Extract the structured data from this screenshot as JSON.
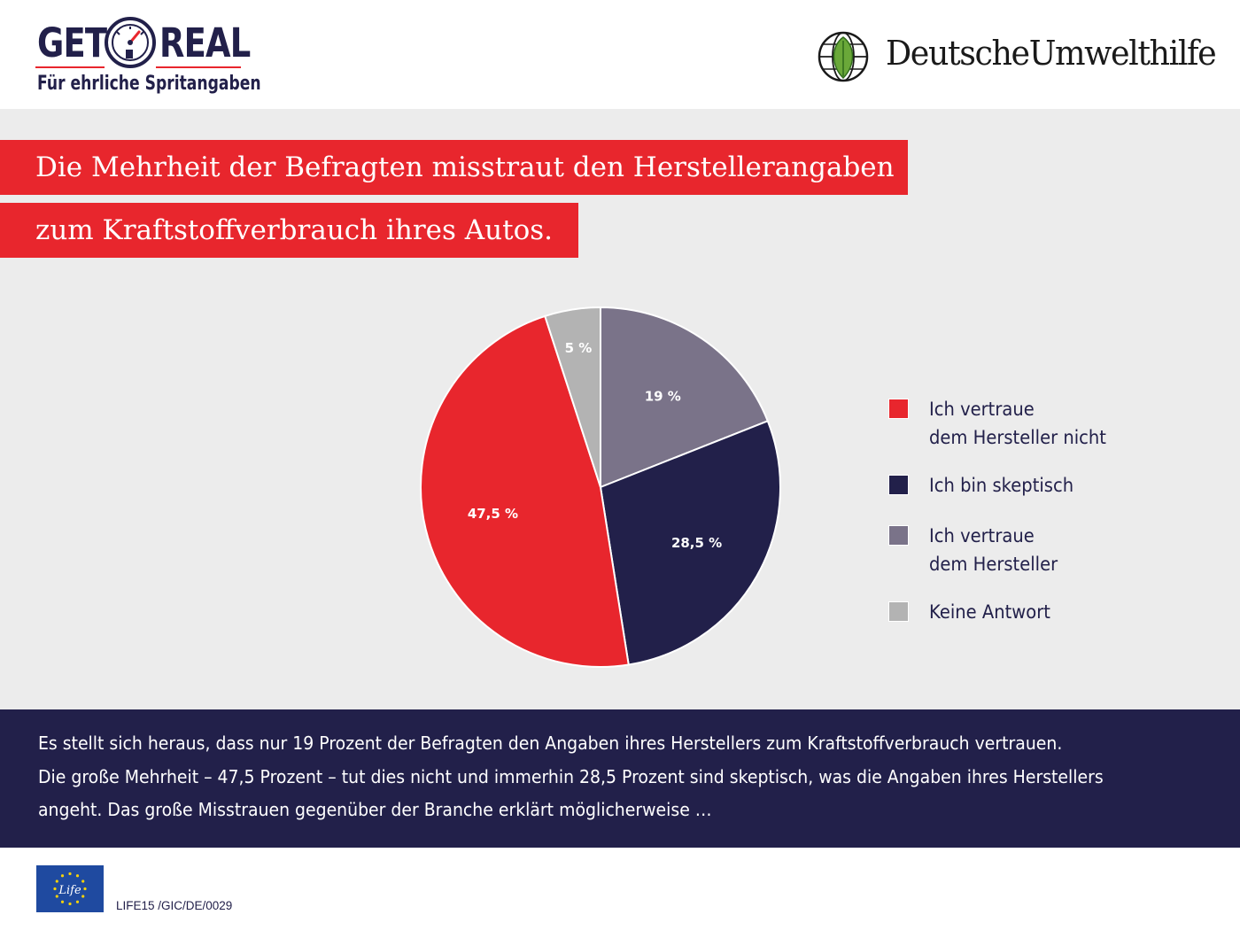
{
  "header": {
    "getreal": {
      "word_left": "GET",
      "word_right": "REAL",
      "tagline": "Für ehrliche Spritangaben"
    },
    "duh": {
      "name": "DeutscheUmwelthilfe"
    }
  },
  "title": {
    "line1": "Die Mehrheit der Befragten misstraut den Herstellerangaben",
    "line2": "zum Kraftstoffverbrauch ihres Autos."
  },
  "colors": {
    "red": "#e8262d",
    "navy": "#22204a",
    "purple_gray": "#7a7389",
    "light_gray": "#b3b3b3",
    "panel": "#ececec"
  },
  "chart_data": {
    "type": "pie",
    "start_angle_deg": 0,
    "direction": "clockwise",
    "slices": [
      {
        "label": "Ich vertraue\ndem Hersteller",
        "value": 19,
        "display": "19 %",
        "color": "#7a7389"
      },
      {
        "label": "Ich bin skeptisch",
        "value": 28.5,
        "display": "28,5 %",
        "color": "#22204a"
      },
      {
        "label": "Ich vertraue\ndem Hersteller nicht",
        "value": 47.5,
        "display": "47,5 %",
        "color": "#e8262d"
      },
      {
        "label": "Keine Antwort",
        "value": 5,
        "display": "5 %",
        "color": "#b3b3b3"
      }
    ],
    "legend_order": [
      2,
      1,
      0,
      3
    ],
    "legend_position": "right"
  },
  "footer": {
    "line1": "Es stellt sich heraus, dass nur 19 Prozent der Befragten den Angaben ihres Herstellers zum Kraftstoffverbrauch vertrauen.",
    "line2": "Die große Mehrheit – 47,5 Prozent – tut dies nicht und immerhin 28,5 Prozent sind skeptisch, was die Angaben ihres Herstellers",
    "line3": "angeht. Das große Misstrauen gegenüber der Branche erklärt möglicherweise …"
  },
  "bottom": {
    "life_logo_text": "Life",
    "project_code": "LIFE15 /GIC/DE/0029"
  }
}
